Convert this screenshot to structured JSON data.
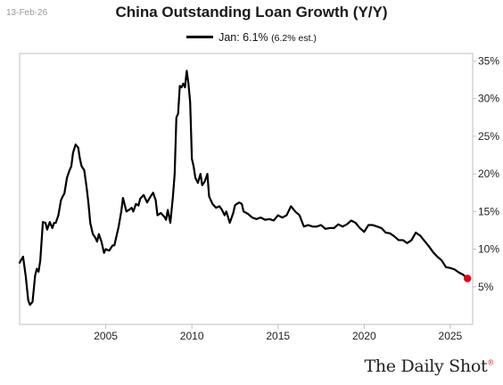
{
  "header": {
    "date": "13-Feb-26"
  },
  "brand": {
    "name": "The Daily Shot",
    "mark": "®"
  },
  "legend": {
    "label": "Jan: 6.1%",
    "estimate": "(6.2% est.)"
  },
  "colors": {
    "line": "#000000",
    "marker": "#e3001b",
    "grid": "#bfbfbf"
  },
  "chart_data": {
    "type": "line",
    "title": "China Outstanding Loan Growth (Y/Y)",
    "xlabel": "",
    "ylabel": "",
    "xlim": [
      2000.0,
      2026.3
    ],
    "ylim": [
      0,
      36
    ],
    "x_ticks": [
      2005,
      2010,
      2015,
      2020,
      2025
    ],
    "x_tick_labels": [
      "2005",
      "2010",
      "2015",
      "2020",
      "2025"
    ],
    "y_ticks": [
      5,
      10,
      15,
      20,
      25,
      30,
      35
    ],
    "y_tick_labels": [
      "5%",
      "10%",
      "15%",
      "20%",
      "25%",
      "30%",
      "35%"
    ],
    "y_axis_side": "right",
    "grid": false,
    "legend_position": "top-center",
    "series": [
      {
        "name": "Jan: 6.1%",
        "x": [
          2000.0,
          2000.2,
          2000.35,
          2000.5,
          2000.6,
          2000.75,
          2000.9,
          2001.0,
          2001.1,
          2001.2,
          2001.35,
          2001.5,
          2001.6,
          2001.75,
          2001.9,
          2002.0,
          2002.1,
          2002.25,
          2002.4,
          2002.5,
          2002.6,
          2002.75,
          2002.9,
          2003.0,
          2003.1,
          2003.25,
          2003.4,
          2003.5,
          2003.6,
          2003.75,
          2003.9,
          2004.0,
          2004.1,
          2004.25,
          2004.4,
          2004.5,
          2004.6,
          2004.75,
          2004.9,
          2005.0,
          2005.2,
          2005.4,
          2005.5,
          2005.6,
          2005.75,
          2005.9,
          2006.0,
          2006.2,
          2006.4,
          2006.5,
          2006.6,
          2006.75,
          2006.9,
          2007.0,
          2007.2,
          2007.4,
          2007.6,
          2007.75,
          2007.9,
          2008.0,
          2008.2,
          2008.4,
          2008.5,
          2008.6,
          2008.75,
          2008.9,
          2009.0,
          2009.1,
          2009.2,
          2009.3,
          2009.4,
          2009.5,
          2009.6,
          2009.7,
          2009.8,
          2009.9,
          2010.0,
          2010.1,
          2010.2,
          2010.35,
          2010.5,
          2010.6,
          2010.75,
          2010.9,
          2011.0,
          2011.2,
          2011.4,
          2011.6,
          2011.75,
          2011.9,
          2012.0,
          2012.2,
          2012.4,
          2012.5,
          2012.6,
          2012.75,
          2012.9,
          2013.0,
          2013.25,
          2013.5,
          2013.75,
          2014.0,
          2014.25,
          2014.5,
          2014.75,
          2015.0,
          2015.25,
          2015.5,
          2015.75,
          2016.0,
          2016.25,
          2016.5,
          2016.75,
          2017.0,
          2017.25,
          2017.5,
          2017.75,
          2018.0,
          2018.25,
          2018.5,
          2018.75,
          2019.0,
          2019.25,
          2019.5,
          2019.75,
          2020.0,
          2020.25,
          2020.5,
          2020.75,
          2021.0,
          2021.25,
          2021.5,
          2021.75,
          2022.0,
          2022.25,
          2022.5,
          2022.75,
          2023.0,
          2023.25,
          2023.5,
          2023.75,
          2024.0,
          2024.25,
          2024.5,
          2024.75,
          2025.0,
          2025.25,
          2025.5,
          2025.75,
          2026.0
        ],
        "y": [
          8.2,
          9.0,
          6.5,
          3.2,
          2.6,
          3.0,
          6.5,
          7.4,
          7.0,
          8.5,
          13.6,
          13.5,
          12.6,
          13.6,
          12.8,
          13.5,
          13.5,
          14.5,
          16.5,
          17.0,
          17.4,
          19.5,
          20.5,
          21.0,
          22.8,
          23.9,
          23.5,
          22.0,
          21.0,
          20.5,
          18.0,
          16.0,
          13.5,
          12.0,
          11.5,
          11.0,
          12.0,
          11.0,
          9.5,
          10.0,
          9.8,
          10.5,
          10.5,
          11.5,
          13.0,
          15.0,
          16.8,
          15.0,
          15.3,
          15.5,
          15.0,
          16.0,
          15.8,
          16.7,
          17.2,
          16.2,
          17.0,
          17.5,
          16.5,
          14.5,
          14.8,
          14.3,
          13.9,
          15.2,
          13.5,
          17.0,
          20.0,
          27.5,
          28.0,
          31.7,
          31.5,
          32.0,
          31.5,
          33.7,
          32.0,
          29.5,
          22.0,
          21.0,
          19.5,
          18.8,
          20.0,
          18.5,
          19.0,
          20.0,
          17.0,
          16.0,
          15.5,
          15.7,
          15.2,
          14.5,
          15.0,
          13.5,
          14.8,
          15.8,
          16.0,
          16.2,
          16.0,
          15.0,
          14.7,
          14.2,
          14.0,
          14.2,
          13.9,
          14.0,
          13.8,
          14.5,
          14.2,
          14.5,
          15.7,
          15.0,
          14.5,
          13.0,
          13.2,
          13.0,
          13.0,
          13.2,
          12.7,
          12.8,
          12.8,
          13.3,
          13.0,
          13.3,
          13.8,
          13.5,
          12.8,
          12.3,
          13.2,
          13.2,
          13.0,
          12.8,
          12.2,
          12.1,
          11.7,
          11.2,
          11.2,
          10.8,
          11.2,
          12.2,
          11.8,
          11.1,
          10.4,
          9.6,
          9.0,
          8.5,
          7.6,
          7.5,
          7.3,
          6.9,
          6.6,
          6.1
        ]
      }
    ],
    "annotations": [
      {
        "type": "end-marker",
        "x": 2026.0,
        "y": 6.1
      }
    ]
  }
}
